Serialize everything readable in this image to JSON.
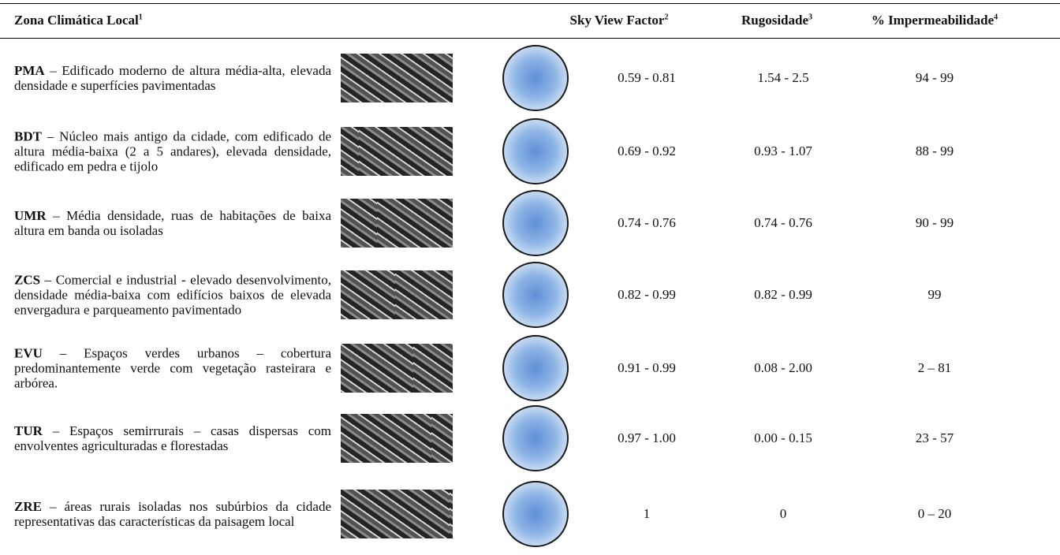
{
  "table": {
    "header": [
      {
        "text": "Zona Climática Local",
        "note": "1"
      },
      {
        "text": "Sky View Factor",
        "note": "2"
      },
      {
        "text": "Rugosidade",
        "note": "3"
      },
      {
        "text": "% Impermeabilidade",
        "note": "4"
      }
    ],
    "rows": [
      {
        "code": "PMA",
        "description": "– Edificado moderno de altura média-alta, elevada densidade e superfícies pavimentadas",
        "svf": "0.59 - 0.81",
        "rugosity": "1.54 - 2.5",
        "imperviousness": "94 - 99"
      },
      {
        "code": "BDT",
        "description": "– Núcleo mais antigo da cidade, com edificado de altura média-baixa (2 a 5 andares), elevada densidade, edificado em pedra e tijolo",
        "svf": "0.69 - 0.92",
        "rugosity": "0.93 - 1.07",
        "imperviousness": "88 - 99"
      },
      {
        "code": "UMR",
        "description": "– Média densidade, ruas de habitações de baixa altura em banda ou isoladas",
        "svf": "0.74 - 0.76",
        "rugosity": "0.74 - 0.76",
        "imperviousness": "90 - 99"
      },
      {
        "code": "ZCS",
        "description": "– Comercial e industrial - elevado desenvolvimento, densidade média-baixa com edifícios baixos de elevada envergadura e parqueamento pavimentado",
        "svf": "0.82 - 0.99",
        "rugosity": "0.82 - 0.99",
        "imperviousness": "99"
      },
      {
        "code": "EVU",
        "description": "– Espaços verdes urbanos – cobertura predominantemente verde com vegetação rasteirara e arbórea.",
        "svf": "0.91 - 0.99",
        "rugosity": "0.08 - 2.00",
        "imperviousness": "2 – 81"
      },
      {
        "code": "TUR",
        "description": "– Espaços semirrurais – casas dispersas com envolventes agriculturadas e florestadas",
        "svf": "0.97 - 1.00",
        "rugosity": "0.00 - 0.15",
        "imperviousness": "23 - 57"
      },
      {
        "code": "ZRE",
        "description": "– áreas rurais isoladas nos subúrbios da cidade representativas das características da paisagem local",
        "svf": "1",
        "rugosity": "0",
        "imperviousness": "0 – 20"
      }
    ]
  }
}
